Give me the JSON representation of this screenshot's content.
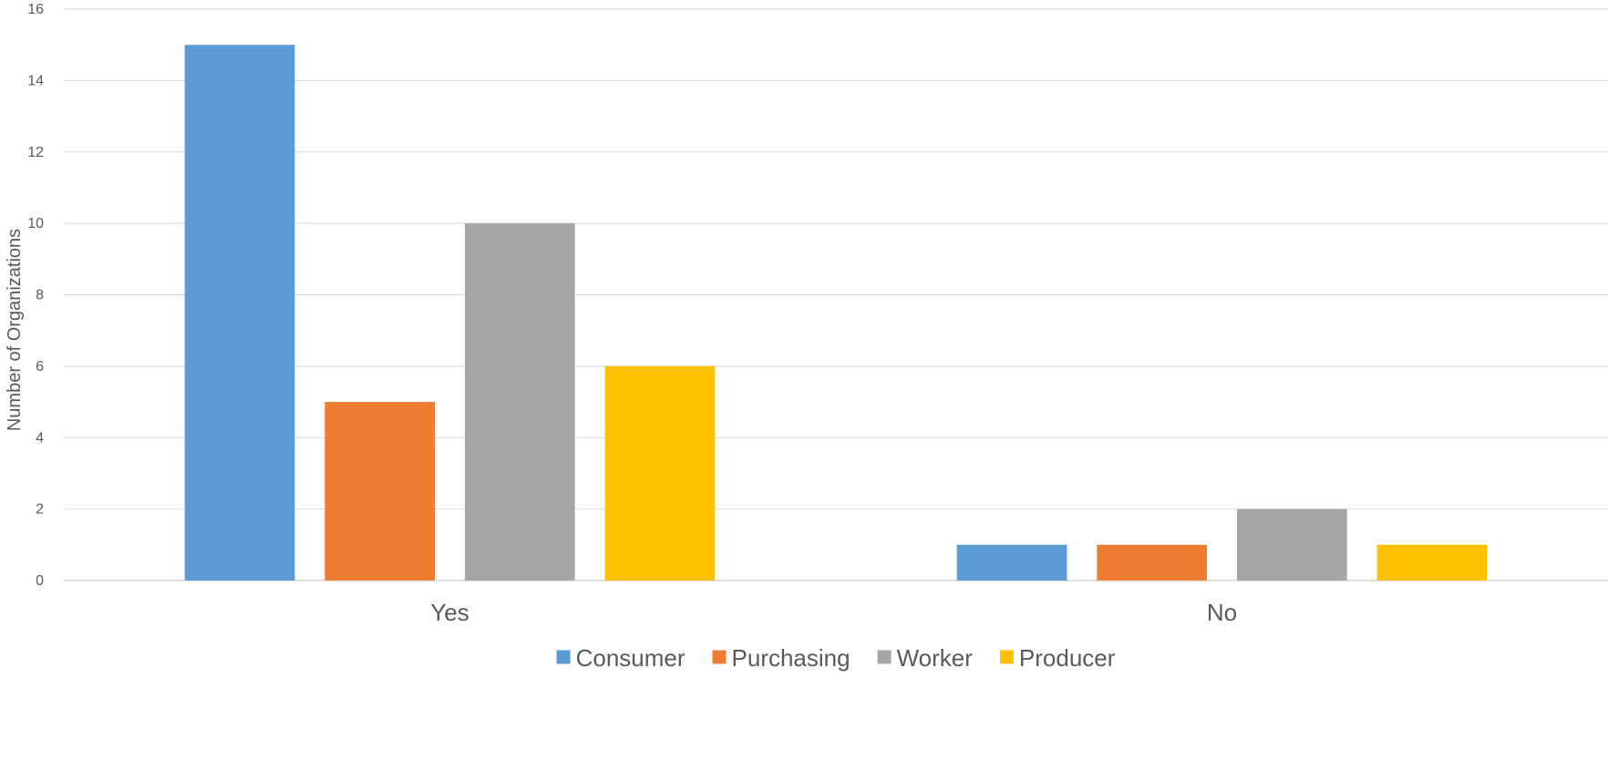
{
  "chart_data": {
    "type": "bar",
    "title": "",
    "xlabel": "",
    "ylabel": "Number of Organizations",
    "categories": [
      "Yes",
      "No"
    ],
    "series": [
      {
        "name": "Consumer",
        "color": "#5B9BD5",
        "values": [
          15,
          1
        ]
      },
      {
        "name": "Purchasing",
        "color": "#ED7D31",
        "values": [
          5,
          1
        ]
      },
      {
        "name": "Worker",
        "color": "#A5A5A5",
        "values": [
          10,
          2
        ]
      },
      {
        "name": "Producer",
        "color": "#FFC000",
        "values": [
          6,
          1
        ]
      }
    ],
    "ylim": [
      0,
      16
    ],
    "yticks": [
      0,
      2,
      4,
      6,
      8,
      10,
      12,
      14,
      16
    ],
    "grid": true,
    "legend_position": "bottom"
  }
}
